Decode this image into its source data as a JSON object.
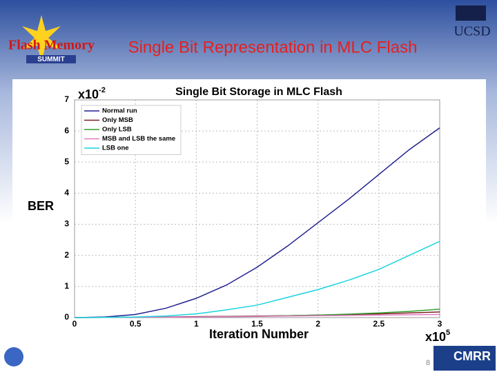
{
  "slide": {
    "title": "Single Bit Representation in MLC Flash",
    "logo_left": "Flash Memory",
    "logo_left_sub": "SUMMIT",
    "logo_right": "UCSD",
    "logo_bottom": "CMRR",
    "page_number": "8"
  },
  "chart_data": {
    "type": "line",
    "title": "Single Bit Storage in MLC Flash",
    "y_label": "BER",
    "x_label": "Iteration Number",
    "y_multiplier": "x10",
    "y_multiplier_exp": "-2",
    "x_multiplier": "x10",
    "x_multiplier_exp": "5",
    "x": [
      0,
      0.25,
      0.5,
      0.75,
      1,
      1.25,
      1.5,
      1.75,
      2,
      2.25,
      2.5,
      2.75,
      3
    ],
    "series": [
      {
        "name": "Normal run",
        "color": "#1f1f8f",
        "values": [
          0,
          0.02,
          0.1,
          0.3,
          0.62,
          1.05,
          1.62,
          2.3,
          3.05,
          3.8,
          4.6,
          5.4,
          6.1
        ]
      },
      {
        "name": "Only MSB",
        "color": "#7a1f1f",
        "values": [
          0,
          0.005,
          0.01,
          0.02,
          0.03,
          0.04,
          0.05,
          0.06,
          0.08,
          0.1,
          0.12,
          0.15,
          0.18
        ]
      },
      {
        "name": "Only LSB",
        "color": "#2ca02c",
        "values": [
          0,
          0.005,
          0.01,
          0.015,
          0.02,
          0.03,
          0.04,
          0.06,
          0.08,
          0.11,
          0.15,
          0.2,
          0.27
        ]
      },
      {
        "name": "MSB and LSB the same",
        "color": "#e377c2",
        "values": [
          0,
          0.005,
          0.01,
          0.015,
          0.02,
          0.03,
          0.04,
          0.05,
          0.06,
          0.07,
          0.08,
          0.09,
          0.1
        ]
      },
      {
        "name": "LSB one",
        "color": "#17d4e0",
        "values": [
          0,
          0.005,
          0.02,
          0.05,
          0.12,
          0.25,
          0.4,
          0.65,
          0.9,
          1.2,
          1.55,
          2.0,
          2.45
        ]
      }
    ],
    "xlim": [
      0,
      3
    ],
    "xticks": [
      0,
      0.5,
      1,
      1.5,
      2,
      2.5,
      3
    ],
    "ylim": [
      0,
      7
    ],
    "yticks": [
      0,
      1,
      2,
      3,
      4,
      5,
      6,
      7
    ],
    "grid": true,
    "legend": "upper left"
  }
}
